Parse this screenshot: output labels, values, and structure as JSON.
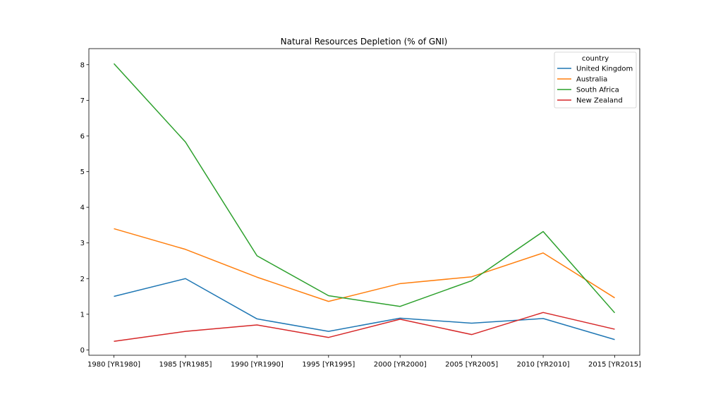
{
  "chart_data": {
    "type": "line",
    "title": "Natural Resources Depletion (% of GNI)",
    "xlabel": "",
    "ylabel": "",
    "categories": [
      "1980 [YR1980]",
      "1985 [YR1985]",
      "1990 [YR1990]",
      "1995 [YR1995]",
      "2000 [YR2000]",
      "2005 [YR2005]",
      "2010 [YR2010]",
      "2015 [YR2015]"
    ],
    "ylim": [
      -0.15,
      8.45
    ],
    "yticks": [
      0,
      1,
      2,
      3,
      4,
      5,
      6,
      7,
      8
    ],
    "grid": false,
    "legend": {
      "title": "country",
      "placement": "top-right"
    },
    "series": [
      {
        "name": "United Kingdom",
        "color": "#1f77b4",
        "values": [
          1.5,
          2.0,
          0.87,
          0.52,
          0.89,
          0.75,
          0.88,
          0.29
        ]
      },
      {
        "name": "Australia",
        "color": "#ff7f0e",
        "values": [
          3.4,
          2.82,
          2.04,
          1.36,
          1.86,
          2.05,
          2.72,
          1.46
        ]
      },
      {
        "name": "South Africa",
        "color": "#2ca02c",
        "values": [
          8.03,
          5.83,
          2.64,
          1.52,
          1.22,
          1.94,
          3.32,
          1.04
        ]
      },
      {
        "name": "New Zealand",
        "color": "#d62728",
        "values": [
          0.24,
          0.52,
          0.7,
          0.35,
          0.86,
          0.43,
          1.05,
          0.58
        ]
      }
    ]
  }
}
